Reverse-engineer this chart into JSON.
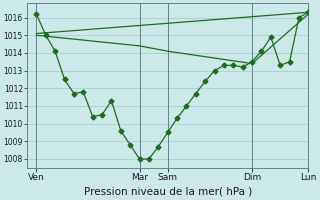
{
  "bg_color": "#cce8e8",
  "grid_color": "#aacfcf",
  "line_color": "#1a6e1a",
  "xlabel": "Pression niveau de la mer( hPa )",
  "ylim": [
    1007.5,
    1016.8
  ],
  "yticks": [
    1008,
    1009,
    1010,
    1011,
    1012,
    1013,
    1014,
    1015,
    1016
  ],
  "xlim": [
    0,
    30
  ],
  "xtick_positions": [
    1,
    12,
    15,
    24,
    30
  ],
  "xtick_labels": [
    "Ven",
    "Mar",
    "Sam",
    "Dim",
    "Lun"
  ],
  "vlines": [
    1,
    12,
    15,
    24,
    30
  ],
  "line_main": {
    "x": [
      1,
      2,
      3,
      4,
      5,
      6,
      7,
      8,
      9,
      10,
      11,
      12,
      13,
      14,
      15,
      16,
      17,
      18,
      19,
      20,
      21,
      22,
      23,
      24,
      25,
      26,
      27,
      28,
      29,
      30
    ],
    "y": [
      1016.2,
      1015.0,
      1014.1,
      1012.5,
      1011.7,
      1011.8,
      1010.4,
      1010.5,
      1011.3,
      1009.6,
      1008.8,
      1008.0,
      1008.0,
      1008.7,
      1009.5,
      1010.3,
      1011.0,
      1011.7,
      1012.4,
      1013.0,
      1013.3,
      1013.3,
      1013.2,
      1013.5,
      1014.1,
      1014.9,
      1013.3,
      1013.5,
      1016.0,
      1016.3
    ]
  },
  "line_upper": {
    "x": [
      1,
      30
    ],
    "y": [
      1015.1,
      1016.3
    ]
  },
  "line_lower": {
    "x": [
      1,
      12,
      15,
      24,
      30
    ],
    "y": [
      1015.0,
      1014.4,
      1014.1,
      1013.4,
      1016.2
    ]
  },
  "marker_size": 2.5,
  "line_width": 0.9,
  "ytick_fontsize": 5.5,
  "xtick_fontsize": 6.5,
  "xlabel_fontsize": 7.5
}
